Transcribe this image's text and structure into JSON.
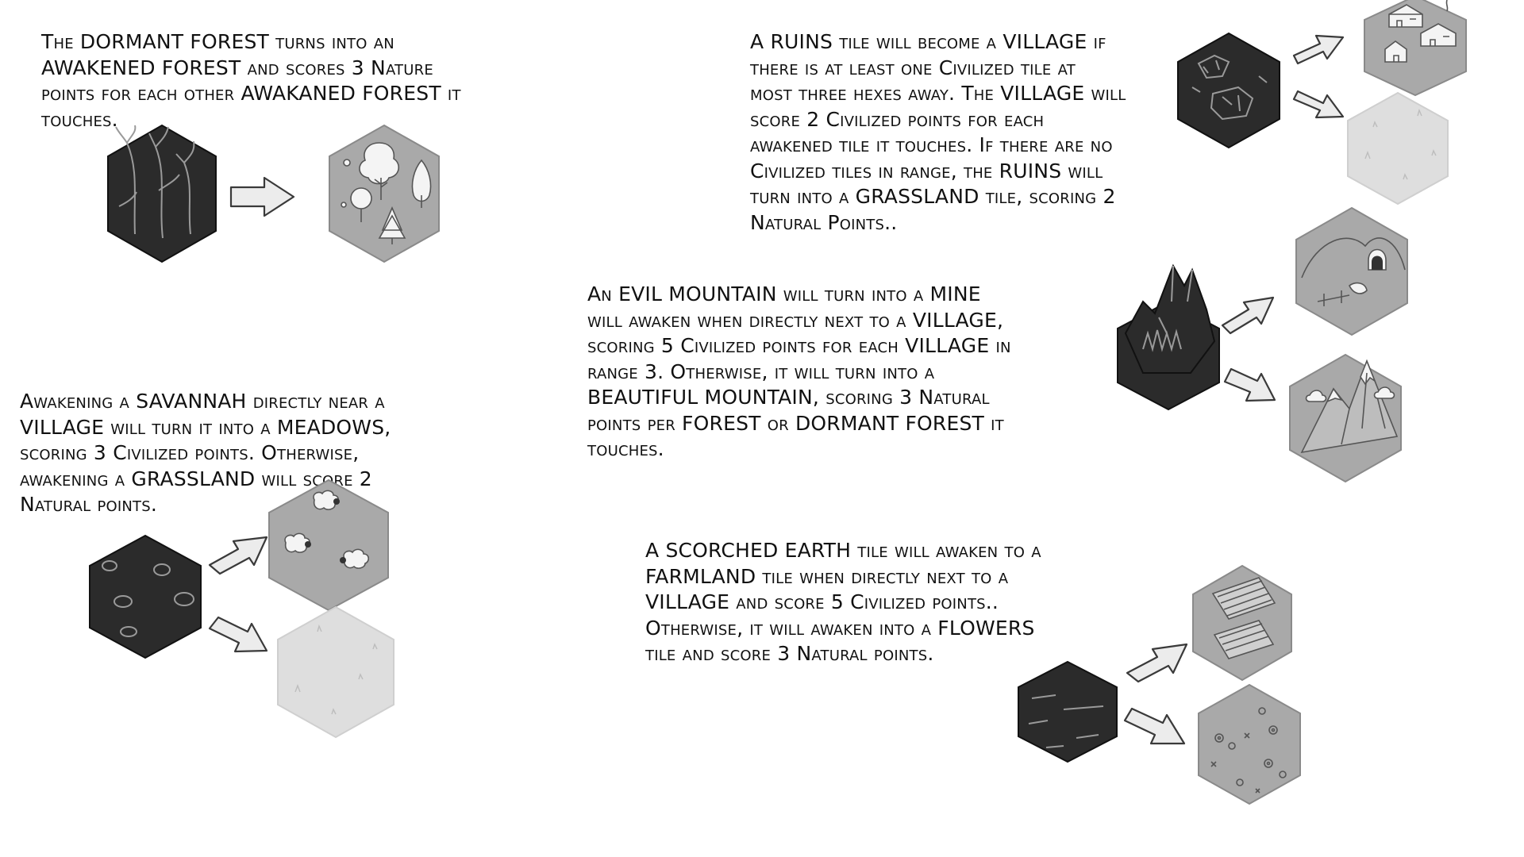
{
  "rules": [
    {
      "id": "forest",
      "lines": [
        "The DORMANT FOREST turns into an",
        "AWAKENED FOREST and scores 3 Nature",
        "points for each other AWAKANED FOREST it",
        "touches."
      ]
    },
    {
      "id": "ruins",
      "lines": [
        "A RUINS tile will become a VILLAGE if",
        "there is at least one Civilized tile at",
        "most three hexes away. The VILLAGE will",
        "score 2 Civilized points for each",
        "awakened tile it touches. If there are no",
        "Civilized tiles in range, the RUINS will",
        "turn into a GRASSLAND tile, scoring 2",
        "Natural Points.."
      ]
    },
    {
      "id": "mountain",
      "lines": [
        "An EVIL MOUNTAIN will turn into a MINE",
        "will awaken when directly next to a VILLAGE,",
        "scoring 5 Civilized points for each VILLAGE in",
        "range 3. Otherwise, it will turn into a",
        "BEAUTIFUL MOUNTAIN, scoring 3 Natural",
        "points per FOREST or DORMANT FOREST it",
        "touches."
      ]
    },
    {
      "id": "savannah",
      "lines": [
        "Awakening a SAVANNAH directly near a",
        "VILLAGE will turn it into a MEADOWS,",
        "scoring 3 Civilized points. Otherwise,",
        "awakening a GRASSLAND will score 2",
        "Natural points."
      ]
    },
    {
      "id": "scorched",
      "lines": [
        "A SCORCHED EARTH tile will awaken to a",
        "FARMLAND tile when directly next to a",
        "VILLAGE and score 5 Civilized points..",
        "Otherwise, it will awaken into a FLOWERS",
        "tile and score 3 Natural points."
      ]
    }
  ],
  "tiles": {
    "dormant_forest": "dead-trees-tile-icon",
    "awakened_forest": "trees-tile-icon",
    "ruins": "ruins-tile-icon",
    "village": "village-tile-icon",
    "grassland": "grassland-tile-icon",
    "evil_mountain": "evil-mountain-tile-icon",
    "mine": "mine-tile-icon",
    "beautiful_mountain": "snowy-mountain-tile-icon",
    "savannah": "savannah-tile-icon",
    "meadows": "sheep-meadow-tile-icon",
    "scorched_earth": "scorched-earth-tile-icon",
    "farmland": "farmland-tile-icon",
    "flowers": "flowers-tile-icon"
  },
  "colors": {
    "dormant_tile": "#2b2b2b",
    "awakened_tile": "#a9a9a9",
    "light_tile": "#dedede",
    "arrow_fill": "#ececec"
  }
}
